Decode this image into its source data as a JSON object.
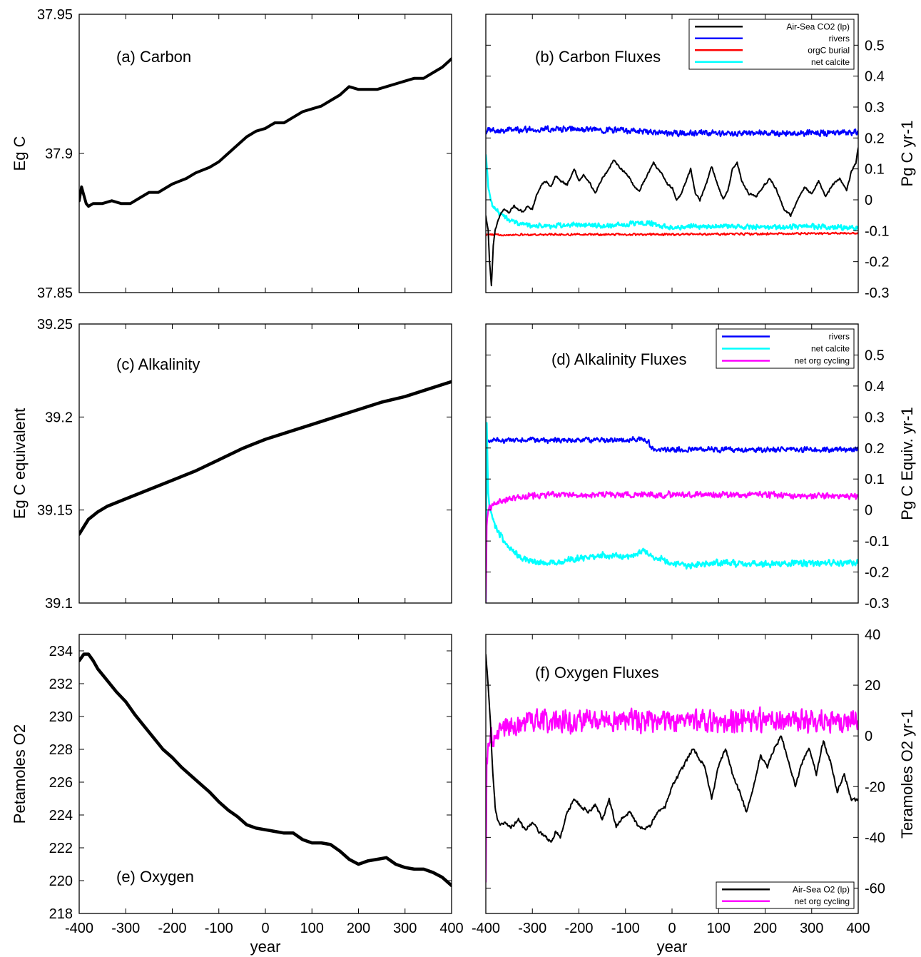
{
  "chart_data": [
    {
      "id": "a",
      "type": "line",
      "title": "(a) Carbon",
      "xlabel": "",
      "ylabel": "Eg C",
      "xlim": [
        -400,
        400
      ],
      "ylim": [
        37.85,
        37.95
      ],
      "yticks": [
        "37.85",
        "37.9",
        "37.95"
      ],
      "xticks": [
        "-400",
        "-300",
        "-200",
        "-100",
        "0",
        "100",
        "200",
        "300",
        "400"
      ],
      "show_xticklabels": false,
      "yaxis_side": "left",
      "series": [
        {
          "color": "#000000",
          "width": 4,
          "x": [
            -400,
            -395,
            -390,
            -385,
            -380,
            -370,
            -350,
            -330,
            -310,
            -290,
            -270,
            -250,
            -230,
            -200,
            -170,
            -150,
            -120,
            -100,
            -80,
            -60,
            -40,
            -20,
            0,
            20,
            40,
            60,
            80,
            100,
            120,
            140,
            160,
            180,
            200,
            220,
            240,
            260,
            280,
            300,
            320,
            340,
            360,
            380,
            400
          ],
          "y": [
            37.883,
            37.888,
            37.885,
            37.882,
            37.881,
            37.882,
            37.882,
            37.883,
            37.882,
            37.882,
            37.884,
            37.886,
            37.886,
            37.889,
            37.891,
            37.893,
            37.895,
            37.897,
            37.9,
            37.903,
            37.906,
            37.908,
            37.909,
            37.911,
            37.911,
            37.913,
            37.915,
            37.916,
            37.917,
            37.919,
            37.921,
            37.924,
            37.923,
            37.923,
            37.923,
            37.924,
            37.925,
            37.926,
            37.927,
            37.927,
            37.929,
            37.931,
            37.934
          ]
        }
      ]
    },
    {
      "id": "b",
      "type": "line",
      "title": "(b) Carbon Fluxes",
      "xlabel": "",
      "ylabel": "Pg C yr-1",
      "xlim": [
        -400,
        400
      ],
      "ylim": [
        -0.3,
        0.6
      ],
      "yticks": [
        "-0.3",
        "-0.2",
        "-0.1",
        "0",
        "0.1",
        "0.2",
        "0.3",
        "0.4",
        "0.5"
      ],
      "xticks": [
        "-400",
        "-300",
        "-200",
        "-100",
        "0",
        "100",
        "200",
        "300",
        "400"
      ],
      "show_xticklabels": false,
      "yaxis_side": "right",
      "legend": {
        "position": "top-right",
        "entries": [
          {
            "label": "Air-Sea CO2 (lp)",
            "color": "#000000"
          },
          {
            "label": "rivers",
            "color": "#0000ff"
          },
          {
            "label": "orgC burial",
            "color": "#ff0000"
          },
          {
            "label": "net calcite",
            "color": "#00ffff"
          }
        ]
      },
      "series": [
        {
          "name": "rivers",
          "color": "#0000ff",
          "width": 2.2,
          "noise": 0.012,
          "x": [
            -400,
            -300,
            -200,
            -100,
            -50,
            0,
            100,
            200,
            300,
            400
          ],
          "y": [
            0.225,
            0.228,
            0.228,
            0.225,
            0.218,
            0.215,
            0.215,
            0.215,
            0.217,
            0.217
          ]
        },
        {
          "name": "orgC burial",
          "color": "#ff0000",
          "width": 2,
          "noise": 0.004,
          "x": [
            -400,
            -200,
            0,
            200,
            400
          ],
          "y": [
            -0.113,
            -0.112,
            -0.112,
            -0.11,
            -0.108
          ]
        },
        {
          "name": "net calcite",
          "color": "#00ffff",
          "width": 2.5,
          "noise": 0.01,
          "x": [
            -400,
            -395,
            -390,
            -380,
            -370,
            -350,
            -330,
            -300,
            -250,
            -200,
            -150,
            -100,
            -50,
            -30,
            0,
            50,
            100,
            200,
            300,
            400
          ],
          "y": [
            0.15,
            0.05,
            0.0,
            -0.03,
            -0.045,
            -0.065,
            -0.075,
            -0.085,
            -0.085,
            -0.08,
            -0.085,
            -0.08,
            -0.075,
            -0.085,
            -0.09,
            -0.085,
            -0.085,
            -0.09,
            -0.085,
            -0.09
          ]
        },
        {
          "name": "Air-Sea CO2 (lp)",
          "color": "#000000",
          "width": 2,
          "noise": 0.004,
          "x": [
            -400,
            -395,
            -392,
            -388,
            -384,
            -380,
            -375,
            -370,
            -360,
            -350,
            -340,
            -330,
            -320,
            -310,
            -300,
            -290,
            -280,
            -270,
            -260,
            -250,
            -240,
            -225,
            -210,
            -200,
            -190,
            -175,
            -165,
            -150,
            -135,
            -125,
            -110,
            -95,
            -80,
            -70,
            -60,
            -50,
            -40,
            -30,
            -20,
            -10,
            0,
            10,
            20,
            30,
            40,
            50,
            60,
            75,
            85,
            100,
            110,
            120,
            130,
            140,
            150,
            165,
            180,
            195,
            210,
            225,
            240,
            255,
            270,
            285,
            300,
            315,
            330,
            345,
            360,
            375,
            385,
            395,
            400
          ],
          "y": [
            -0.05,
            -0.1,
            -0.2,
            -0.28,
            -0.15,
            -0.1,
            -0.07,
            -0.05,
            -0.03,
            -0.04,
            -0.02,
            -0.03,
            -0.04,
            -0.02,
            -0.03,
            0.02,
            0.05,
            0.06,
            0.04,
            0.08,
            0.06,
            0.05,
            0.1,
            0.06,
            0.08,
            0.05,
            0.02,
            0.07,
            0.1,
            0.13,
            0.1,
            0.08,
            0.04,
            0.03,
            0.06,
            0.09,
            0.12,
            0.1,
            0.08,
            0.05,
            0.04,
            0.0,
            0.02,
            0.06,
            0.1,
            0.02,
            0.0,
            0.06,
            0.11,
            0.04,
            0.0,
            0.03,
            0.1,
            0.12,
            0.06,
            0.02,
            0.01,
            0.04,
            0.07,
            0.03,
            -0.03,
            -0.05,
            0.0,
            0.04,
            0.02,
            0.06,
            0.01,
            0.05,
            0.07,
            0.03,
            0.09,
            0.12,
            0.17
          ]
        }
      ]
    },
    {
      "id": "c",
      "type": "line",
      "title": "(c) Alkalinity",
      "xlabel": "",
      "ylabel": "Eg C equivalent",
      "xlim": [
        -400,
        400
      ],
      "ylim": [
        39.1,
        39.25
      ],
      "yticks": [
        "39.1",
        "39.15",
        "39.2",
        "39.25"
      ],
      "xticks": [
        "-400",
        "-300",
        "-200",
        "-100",
        "0",
        "100",
        "200",
        "300",
        "400"
      ],
      "show_xticklabels": false,
      "yaxis_side": "left",
      "series": [
        {
          "color": "#000000",
          "width": 4.5,
          "x": [
            -400,
            -390,
            -380,
            -360,
            -340,
            -300,
            -250,
            -200,
            -150,
            -100,
            -50,
            -30,
            0,
            50,
            100,
            150,
            200,
            250,
            300,
            350,
            400
          ],
          "y": [
            39.137,
            39.141,
            39.145,
            39.149,
            39.152,
            39.156,
            39.161,
            39.166,
            39.171,
            39.177,
            39.183,
            39.185,
            39.188,
            39.192,
            39.196,
            39.2,
            39.204,
            39.208,
            39.211,
            39.215,
            39.219
          ]
        }
      ]
    },
    {
      "id": "d",
      "type": "line",
      "title": "(d) Alkalinity Fluxes",
      "xlabel": "",
      "ylabel": "Pg C Equiv. yr-1",
      "xlim": [
        -400,
        400
      ],
      "ylim": [
        -0.3,
        0.6
      ],
      "yticks": [
        "-0.3",
        "-0.2",
        "-0.1",
        "0",
        "0.1",
        "0.2",
        "0.3",
        "0.4",
        "0.5"
      ],
      "xticks": [
        "-400",
        "-300",
        "-200",
        "-100",
        "0",
        "100",
        "200",
        "300",
        "400"
      ],
      "show_xticklabels": false,
      "yaxis_side": "right",
      "legend": {
        "position": "top-right",
        "entries": [
          {
            "label": "rivers",
            "color": "#0000ff"
          },
          {
            "label": "net calcite",
            "color": "#00ffff"
          },
          {
            "label": "net org cycling",
            "color": "#ff00ff"
          }
        ]
      },
      "series": [
        {
          "name": "rivers",
          "color": "#0000ff",
          "width": 2.2,
          "noise": 0.01,
          "x": [
            -400,
            -200,
            -60,
            -50,
            -45,
            -30,
            0,
            100,
            200,
            300,
            400
          ],
          "y": [
            0.225,
            0.225,
            0.228,
            0.22,
            0.2,
            0.195,
            0.195,
            0.195,
            0.195,
            0.195,
            0.195
          ]
        },
        {
          "name": "net calcite",
          "color": "#00ffff",
          "width": 2.5,
          "noise": 0.012,
          "x": [
            -400,
            -398,
            -395,
            -390,
            -380,
            -370,
            -350,
            -330,
            -300,
            -250,
            -200,
            -150,
            -100,
            -60,
            -40,
            0,
            30,
            100,
            200,
            300,
            400
          ],
          "y": [
            -0.3,
            0.28,
            0.05,
            0.0,
            -0.05,
            -0.08,
            -0.12,
            -0.15,
            -0.17,
            -0.17,
            -0.155,
            -0.145,
            -0.15,
            -0.135,
            -0.15,
            -0.17,
            -0.18,
            -0.17,
            -0.175,
            -0.17,
            -0.17
          ]
        },
        {
          "name": "net org cycling",
          "color": "#ff00ff",
          "width": 2.2,
          "noise": 0.012,
          "x": [
            -400,
            -398,
            -395,
            -390,
            -380,
            -370,
            -350,
            -330,
            -300,
            -250,
            -200,
            -100,
            0,
            100,
            200,
            300,
            400
          ],
          "y": [
            -0.3,
            -0.05,
            0.0,
            0.01,
            0.02,
            0.025,
            0.035,
            0.04,
            0.045,
            0.05,
            0.05,
            0.05,
            0.05,
            0.05,
            0.05,
            0.045,
            0.045
          ]
        }
      ]
    },
    {
      "id": "e",
      "type": "line",
      "title": "(e) Oxygen",
      "xlabel": "year",
      "ylabel": "Petamoles O2",
      "xlim": [
        -400,
        400
      ],
      "ylim": [
        218,
        235
      ],
      "yticks": [
        "218",
        "220",
        "222",
        "224",
        "226",
        "228",
        "230",
        "232",
        "234"
      ],
      "xticks": [
        "-400",
        "-300",
        "-200",
        "-100",
        "0",
        "100",
        "200",
        "300",
        "400"
      ],
      "show_xticklabels": true,
      "yaxis_side": "left",
      "series": [
        {
          "color": "#000000",
          "width": 4.5,
          "x": [
            -400,
            -395,
            -390,
            -380,
            -370,
            -360,
            -340,
            -320,
            -300,
            -280,
            -260,
            -240,
            -220,
            -200,
            -180,
            -160,
            -140,
            -120,
            -100,
            -80,
            -60,
            -40,
            -20,
            0,
            20,
            40,
            60,
            80,
            100,
            120,
            140,
            160,
            180,
            200,
            220,
            240,
            260,
            280,
            300,
            320,
            340,
            360,
            380,
            400
          ],
          "y": [
            233.4,
            233.6,
            233.8,
            233.8,
            233.4,
            232.9,
            232.2,
            231.5,
            230.9,
            230.1,
            229.4,
            228.7,
            228.0,
            227.5,
            226.9,
            226.4,
            225.9,
            225.4,
            224.8,
            224.3,
            223.9,
            223.4,
            223.2,
            223.1,
            223.0,
            222.9,
            222.9,
            222.5,
            222.3,
            222.3,
            222.2,
            221.8,
            221.3,
            221.0,
            221.2,
            221.3,
            221.4,
            221.0,
            220.8,
            220.7,
            220.7,
            220.5,
            220.2,
            219.7
          ]
        }
      ]
    },
    {
      "id": "f",
      "type": "line",
      "title": "(f) Oxygen Fluxes",
      "xlabel": "year",
      "ylabel": "Teramoles O2 yr-1",
      "xlim": [
        -400,
        400
      ],
      "ylim": [
        -70,
        40
      ],
      "yticks": [
        "-60",
        "-40",
        "-20",
        "0",
        "20",
        "40"
      ],
      "xticks": [
        "-400",
        "-300",
        "-200",
        "-100",
        "0",
        "100",
        "200",
        "300",
        "400"
      ],
      "show_xticklabels": true,
      "yaxis_side": "right",
      "legend": {
        "position": "bottom-right",
        "entries": [
          {
            "label": "Air-Sea O2 (lp)",
            "color": "#000000"
          },
          {
            "label": "net org cycling",
            "color": "#ff00ff"
          }
        ]
      },
      "series": [
        {
          "name": "net org cycling",
          "color": "#ff00ff",
          "width": 2.2,
          "noise": 5.5,
          "x": [
            -400,
            -398,
            -395,
            -390,
            -380,
            -370,
            -350,
            -320,
            -300,
            -200,
            -100,
            0,
            100,
            200,
            300,
            400
          ],
          "y": [
            -58,
            -10,
            -5,
            -2,
            0,
            2,
            4,
            5,
            6,
            6,
            6,
            6,
            6,
            6,
            6,
            6
          ]
        },
        {
          "name": "Air-Sea O2 (lp)",
          "color": "#000000",
          "width": 2,
          "noise": 0.8,
          "x": [
            -400,
            -395,
            -390,
            -385,
            -380,
            -375,
            -370,
            -360,
            -345,
            -330,
            -315,
            -300,
            -285,
            -270,
            -260,
            -250,
            -240,
            -225,
            -210,
            -195,
            -180,
            -165,
            -150,
            -135,
            -120,
            -105,
            -90,
            -75,
            -60,
            -45,
            -30,
            -15,
            0,
            15,
            30,
            45,
            55,
            70,
            85,
            100,
            115,
            130,
            145,
            160,
            175,
            190,
            205,
            220,
            235,
            250,
            265,
            280,
            295,
            310,
            325,
            340,
            355,
            370,
            385,
            400
          ],
          "y": [
            32,
            20,
            5,
            -15,
            -28,
            -33,
            -35,
            -34,
            -36,
            -33,
            -37,
            -34,
            -38,
            -40,
            -42,
            -38,
            -40,
            -30,
            -25,
            -28,
            -30,
            -27,
            -33,
            -25,
            -36,
            -32,
            -30,
            -35,
            -37,
            -35,
            -30,
            -28,
            -20,
            -15,
            -10,
            -5,
            -8,
            -12,
            -25,
            -12,
            -5,
            -15,
            -22,
            -30,
            -20,
            -8,
            -12,
            -5,
            0,
            -10,
            -20,
            -10,
            -5,
            -15,
            -2,
            -10,
            -22,
            -15,
            -25,
            -25
          ]
        }
      ]
    }
  ]
}
